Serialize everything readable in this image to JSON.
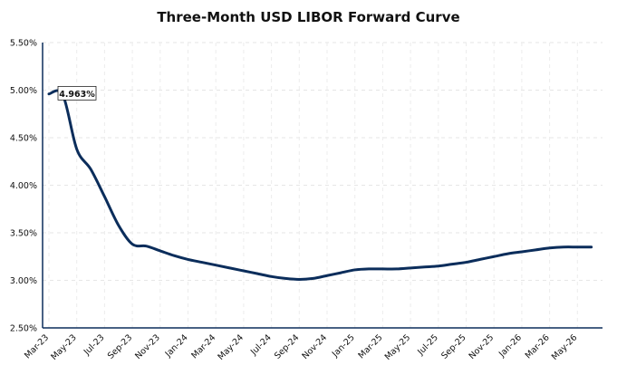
{
  "chart_data": {
    "type": "line",
    "title": "Three-Month USD LIBOR Forward Curve",
    "xlabel": "",
    "ylabel": "",
    "ylim": [
      2.5,
      5.5
    ],
    "y_ticks": [
      "2.50%",
      "3.00%",
      "3.50%",
      "4.00%",
      "4.50%",
      "5.00%",
      "5.50%"
    ],
    "x_tick_labels": [
      "Mar-23",
      "May-23",
      "Jul-23",
      "Sep-23",
      "Nov-23",
      "Jan-24",
      "Mar-24",
      "May-24",
      "Jul-24",
      "Sep-24",
      "Nov-24",
      "Jan-25",
      "Mar-25",
      "May-25",
      "Jul-25",
      "Sep-25",
      "Nov-25",
      "Jan-26",
      "Mar-26",
      "May-26"
    ],
    "grid": true,
    "series": [
      {
        "color": "#0b2d5b",
        "x": [
          "Mar-23",
          "Apr-23",
          "May-23",
          "Jun-23",
          "Jul-23",
          "Aug-23",
          "Sep-23",
          "Oct-23",
          "Nov-23",
          "Dec-23",
          "Jan-24",
          "Feb-24",
          "Mar-24",
          "Apr-24",
          "May-24",
          "Jun-24",
          "Jul-24",
          "Aug-24",
          "Sep-24",
          "Oct-24",
          "Nov-24",
          "Dec-24",
          "Jan-25",
          "Feb-25",
          "Mar-25",
          "Apr-25",
          "May-25",
          "Jun-25",
          "Jul-25",
          "Aug-25",
          "Sep-25",
          "Oct-25",
          "Nov-25",
          "Dec-25",
          "Jan-26",
          "Feb-26",
          "Mar-26",
          "Apr-26",
          "May-26",
          "Jun-26"
        ],
        "values": [
          4.96,
          4.95,
          4.38,
          4.17,
          3.88,
          3.58,
          3.38,
          3.36,
          3.31,
          3.26,
          3.22,
          3.19,
          3.16,
          3.13,
          3.1,
          3.07,
          3.04,
          3.02,
          3.01,
          3.02,
          3.05,
          3.08,
          3.11,
          3.12,
          3.12,
          3.12,
          3.13,
          3.14,
          3.15,
          3.17,
          3.19,
          3.22,
          3.25,
          3.28,
          3.3,
          3.32,
          3.34,
          3.35,
          3.35,
          3.35
        ]
      }
    ],
    "annotations": [
      {
        "label": "4.963%",
        "x": "Mar-23",
        "y": 4.963
      }
    ]
  }
}
